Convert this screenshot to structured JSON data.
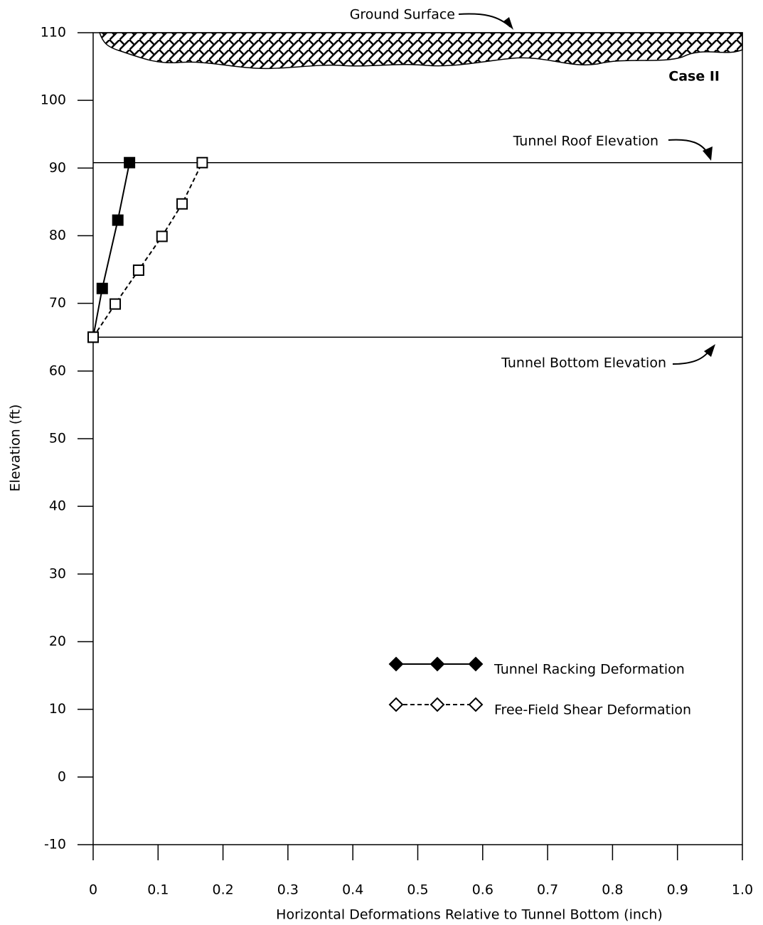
{
  "chart_data": {
    "type": "line",
    "annotations": {
      "ground": "Ground Surface",
      "case": "Case II"
    },
    "x_label": "Horizontal Deformations Relative to Tunnel Bottom (inch)",
    "y_label": "Elevation (ft)",
    "xlim": [
      0,
      1
    ],
    "xticks": [
      0,
      0.1,
      0.2,
      0.3,
      0.4,
      0.5,
      0.6,
      0.7,
      0.8,
      0.9,
      {
        "value": 1,
        "label": "1.0"
      }
    ],
    "ylim": [
      -10,
      110
    ],
    "yticks": [
      -10,
      0,
      10,
      20,
      30,
      40,
      50,
      60,
      70,
      80,
      90,
      100,
      110
    ],
    "reference_lines": [
      {
        "value": 90.8,
        "label": "Tunnel Roof Elevation"
      },
      {
        "value": 65,
        "label": "Tunnel Bottom Elevation"
      }
    ],
    "series": [
      {
        "name": "Tunnel Racking Deformation",
        "color": "#000000",
        "marker_fill": "#000000",
        "dashed": false,
        "x": [
          0,
          0.014,
          0.038,
          0.056
        ],
        "values": [
          65,
          72.2,
          82.3,
          90.8
        ]
      },
      {
        "name": "Free-Field Shear Deformation",
        "color": "#000000",
        "marker_fill": "#ffffff",
        "dashed": true,
        "x": [
          0,
          0.034,
          0.07,
          0.106,
          0.137,
          0.168
        ],
        "values": [
          65,
          69.9,
          74.9,
          79.9,
          84.7,
          90.8
        ]
      }
    ]
  }
}
